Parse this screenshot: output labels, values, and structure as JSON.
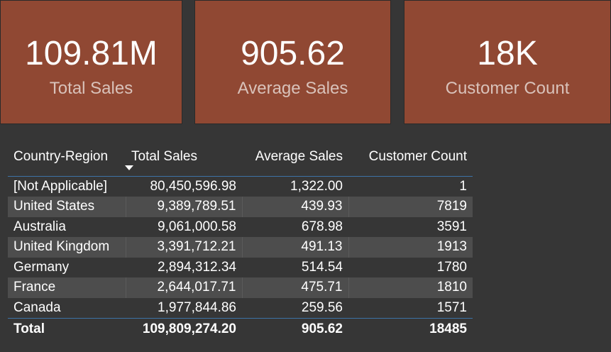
{
  "cards": [
    {
      "value": "109.81M",
      "label": "Total Sales"
    },
    {
      "value": "905.62",
      "label": "Average Sales"
    },
    {
      "value": "18K",
      "label": "Customer Count"
    }
  ],
  "table": {
    "headers": [
      "Country-Region",
      "Total Sales",
      "Average Sales",
      "Customer Count"
    ],
    "sorted_column": "Total Sales",
    "sort_direction": "descending",
    "rows": [
      [
        "[Not Applicable]",
        "80,450,596.98",
        "1,322.00",
        "1"
      ],
      [
        "United States",
        "9,389,789.51",
        "439.93",
        "7819"
      ],
      [
        "Australia",
        "9,061,000.58",
        "678.98",
        "3591"
      ],
      [
        "United Kingdom",
        "3,391,712.21",
        "491.13",
        "1913"
      ],
      [
        "Germany",
        "2,894,312.34",
        "514.54",
        "1780"
      ],
      [
        "France",
        "2,644,017.71",
        "475.71",
        "1810"
      ],
      [
        "Canada",
        "1,977,844.86",
        "259.56",
        "1571"
      ]
    ],
    "total": [
      "Total",
      "109,809,274.20",
      "905.62",
      "18485"
    ]
  },
  "colors": {
    "card_background": "#904833",
    "page_background": "#363636",
    "accent_line": "#3d72a6"
  }
}
